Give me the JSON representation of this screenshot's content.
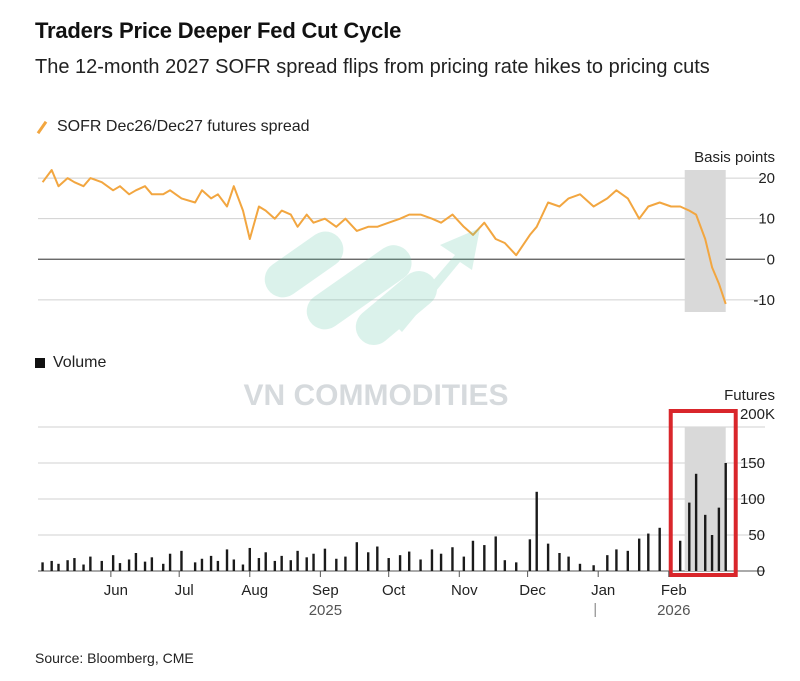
{
  "title": "Traders Price Deeper Fed Cut Cycle",
  "subtitle": "The 12-month 2027 SOFR spread flips from pricing rate hikes to pricing cuts",
  "watermark": "VN COMMODITIES",
  "source": "Source: Bloomberg, CME",
  "colors": {
    "spread_line": "#f2a640",
    "volume_bar": "#1a1a1a",
    "highlight_band": "#d9d9d9",
    "annotation_box": "#d9262b",
    "gridline": "#d0d0d0",
    "zero_line": "#555555"
  },
  "chart_data": [
    {
      "type": "line",
      "legend": "SOFR Dec26/Dec27 futures spread",
      "unit_label": "Basis points",
      "ylim": [
        -13,
        22
      ],
      "yticks": [
        20,
        10,
        0,
        -10
      ],
      "highlight": {
        "from": "2026-02-08",
        "to": "2026-02-26"
      },
      "x": [
        "2025-05-02",
        "2025-05-06",
        "2025-05-09",
        "2025-05-13",
        "2025-05-16",
        "2025-05-20",
        "2025-05-23",
        "2025-05-28",
        "2025-06-02",
        "2025-06-05",
        "2025-06-09",
        "2025-06-12",
        "2025-06-16",
        "2025-06-19",
        "2025-06-24",
        "2025-06-27",
        "2025-07-02",
        "2025-07-08",
        "2025-07-11",
        "2025-07-15",
        "2025-07-18",
        "2025-07-22",
        "2025-07-25",
        "2025-07-29",
        "2025-08-01",
        "2025-08-05",
        "2025-08-08",
        "2025-08-12",
        "2025-08-15",
        "2025-08-19",
        "2025-08-22",
        "2025-08-26",
        "2025-08-29",
        "2025-09-03",
        "2025-09-08",
        "2025-09-12",
        "2025-09-17",
        "2025-09-22",
        "2025-09-26",
        "2025-10-01",
        "2025-10-06",
        "2025-10-10",
        "2025-10-15",
        "2025-10-20",
        "2025-10-24",
        "2025-10-29",
        "2025-11-03",
        "2025-11-07",
        "2025-11-12",
        "2025-11-17",
        "2025-11-21",
        "2025-11-26",
        "2025-12-02",
        "2025-12-05",
        "2025-12-10",
        "2025-12-15",
        "2025-12-19",
        "2025-12-24",
        "2025-12-30",
        "2026-01-05",
        "2026-01-09",
        "2026-01-14",
        "2026-01-19",
        "2026-01-23",
        "2026-01-28",
        "2026-02-02",
        "2026-02-06",
        "2026-02-10",
        "2026-02-13",
        "2026-02-17",
        "2026-02-20",
        "2026-02-23",
        "2026-02-26"
      ],
      "values": [
        19,
        22,
        18,
        20,
        19,
        18,
        20,
        19,
        17,
        18,
        16,
        17,
        18,
        16,
        16,
        17,
        15,
        14,
        17,
        15,
        16,
        13,
        18,
        12,
        5,
        13,
        12,
        10,
        12,
        11,
        8,
        11,
        9,
        10,
        8,
        10,
        7,
        8,
        8,
        9,
        10,
        11,
        11,
        10,
        9,
        11,
        8,
        6,
        9,
        5,
        4,
        1,
        6,
        8,
        14,
        13,
        15,
        16,
        13,
        15,
        17,
        15,
        10,
        13,
        14,
        13,
        13,
        12,
        11,
        5,
        -2,
        -6,
        -11
      ]
    },
    {
      "type": "bar",
      "legend": "Volume",
      "unit_label_1": "Futures",
      "unit_label_2": "200K",
      "ylim": [
        0,
        200
      ],
      "yticks": [
        150,
        100,
        50,
        0
      ],
      "highlight": {
        "from": "2026-02-08",
        "to": "2026-02-26"
      },
      "annotation": "red box around February 2026 volume",
      "x": [
        "2025-05-02",
        "2025-05-06",
        "2025-05-09",
        "2025-05-13",
        "2025-05-16",
        "2025-05-20",
        "2025-05-23",
        "2025-05-28",
        "2025-06-02",
        "2025-06-05",
        "2025-06-09",
        "2025-06-12",
        "2025-06-16",
        "2025-06-19",
        "2025-06-24",
        "2025-06-27",
        "2025-07-02",
        "2025-07-08",
        "2025-07-11",
        "2025-07-15",
        "2025-07-18",
        "2025-07-22",
        "2025-07-25",
        "2025-07-29",
        "2025-08-01",
        "2025-08-05",
        "2025-08-08",
        "2025-08-12",
        "2025-08-15",
        "2025-08-19",
        "2025-08-22",
        "2025-08-26",
        "2025-08-29",
        "2025-09-03",
        "2025-09-08",
        "2025-09-12",
        "2025-09-17",
        "2025-09-22",
        "2025-09-26",
        "2025-10-01",
        "2025-10-06",
        "2025-10-10",
        "2025-10-15",
        "2025-10-20",
        "2025-10-24",
        "2025-10-29",
        "2025-11-03",
        "2025-11-07",
        "2025-11-12",
        "2025-11-17",
        "2025-11-21",
        "2025-11-26",
        "2025-12-02",
        "2025-12-05",
        "2025-12-10",
        "2025-12-15",
        "2025-12-19",
        "2025-12-24",
        "2025-12-30",
        "2026-01-05",
        "2026-01-09",
        "2026-01-14",
        "2026-01-19",
        "2026-01-23",
        "2026-01-28",
        "2026-02-02",
        "2026-02-06",
        "2026-02-10",
        "2026-02-13",
        "2026-02-17",
        "2026-02-20",
        "2026-02-23",
        "2026-02-26"
      ],
      "values": [
        12,
        14,
        10,
        15,
        18,
        9,
        20,
        14,
        22,
        11,
        16,
        25,
        13,
        19,
        10,
        24,
        28,
        12,
        17,
        21,
        14,
        30,
        16,
        9,
        32,
        18,
        26,
        14,
        21,
        15,
        28,
        19,
        24,
        31,
        17,
        20,
        40,
        26,
        34,
        18,
        22,
        27,
        16,
        30,
        24,
        33,
        20,
        42,
        36,
        48,
        15,
        12,
        44,
        110,
        38,
        25,
        20,
        10,
        8,
        22,
        30,
        28,
        45,
        52,
        60,
        35,
        42,
        95,
        135,
        78,
        50,
        88,
        150
      ]
    }
  ],
  "x_axis": {
    "months": [
      {
        "label": "Jun",
        "date": "2025-06-01"
      },
      {
        "label": "Jul",
        "date": "2025-07-01"
      },
      {
        "label": "Aug",
        "date": "2025-08-01"
      },
      {
        "label": "Sep",
        "date": "2025-09-01"
      },
      {
        "label": "Oct",
        "date": "2025-10-01"
      },
      {
        "label": "Nov",
        "date": "2025-11-01"
      },
      {
        "label": "Dec",
        "date": "2025-12-01"
      },
      {
        "label": "Jan",
        "date": "2026-01-01"
      },
      {
        "label": "Feb",
        "date": "2026-02-01"
      }
    ],
    "years": [
      {
        "label": "2025",
        "date": "2025-09-01"
      },
      {
        "label": "2026",
        "date": "2026-02-01"
      }
    ]
  }
}
